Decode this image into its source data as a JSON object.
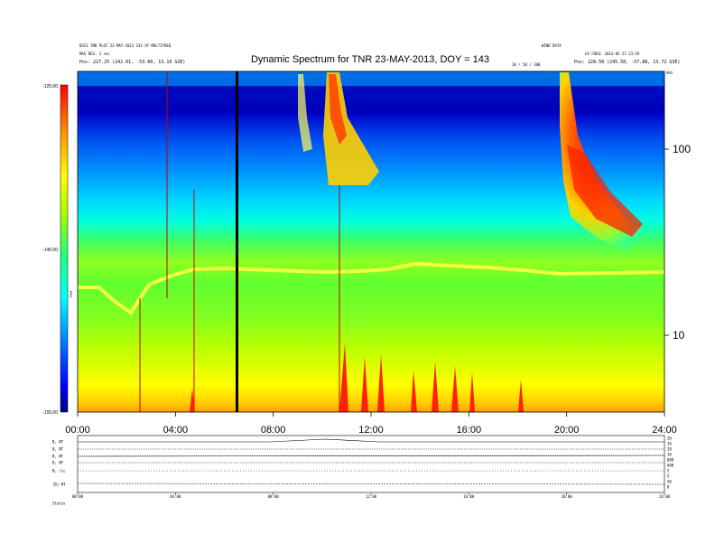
{
  "header": {
    "title": "Dynamic Spectrum for TNR 23-MAY-2013, DOY = 143",
    "left_line1": "DSCS TNR PLOT 23-MAY-2013 143 XY MULTIFREQ",
    "left_line2": "MAG RES: 3 sec",
    "left_pos": "Pos:  227.25 (242.01, -53.00, 13.19 GSE)",
    "right_line1": "WIND DATA",
    "right_line2": "LR FREQ: 2013-05-23 23:59",
    "right_pos": "Pos:  228.58 (245.58, -57.88, 13.72 GSE)",
    "center_small": "10 / 50 / 100",
    "right_corner": "kHz"
  },
  "colorbar": {
    "top_label": "-125.00",
    "mid_label": "-140.00",
    "bottom_label": "-155.00",
    "axis_label": "TNR",
    "colors": [
      "#000080",
      "#0000ff",
      "#0060ff",
      "#00c8ff",
      "#00ffff",
      "#30ff80",
      "#80ff00",
      "#ffff00",
      "#ffa000",
      "#ff5000",
      "#ff0000"
    ]
  },
  "chart_data": {
    "type": "heatmap",
    "title": "Dynamic Spectrum for TNR 23-MAY-2013, DOY = 143",
    "x_ticks": [
      "00:00",
      "04:00",
      "08:00",
      "12:00",
      "16:00",
      "20:00",
      "24:00"
    ],
    "x_range_hours": [
      0,
      24
    ],
    "y_scale": "log",
    "y_ticks": [
      {
        "value": 100,
        "label": "100"
      },
      {
        "value": 10,
        "label": "10"
      }
    ],
    "y_range_khz": [
      4,
      250
    ],
    "colorbar_range": [
      -155.0,
      -125.0
    ],
    "features": [
      {
        "type": "noise_band",
        "start_hr": 0,
        "end_hr": 24,
        "level_khz": 21
      },
      {
        "type": "type_iii_burst",
        "start_hr": 10.3,
        "freq_top_khz": 250,
        "freq_bottom_khz": 65
      },
      {
        "type": "type_ii_burst",
        "start_hr": 19.9,
        "freq_top_khz": 250,
        "freq_bottom_khz": 38
      }
    ],
    "lower_panels": {
      "row_labels": [
        "B, NT",
        "B, NT",
        "B, NT",
        "B, NT",
        "N, /cc",
        "|B| NT",
        "Status"
      ],
      "right_labels": [
        "20",
        "10",
        "20",
        "10",
        "800",
        "600",
        "5",
        "5",
        "50",
        "0"
      ],
      "x_ticks": [
        "00:00",
        "04:00",
        "08:00",
        "12:00",
        "16:00",
        "20:00",
        "24:00"
      ]
    }
  }
}
